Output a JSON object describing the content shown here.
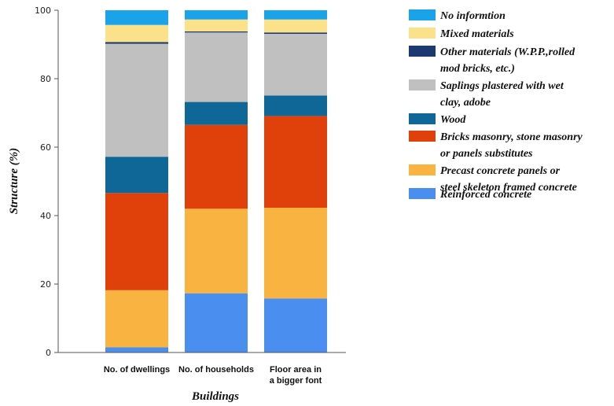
{
  "chart_data": {
    "type": "bar",
    "stacked": true,
    "xlabel": "Buildings",
    "ylabel": "Structure (%)",
    "ylim": [
      0,
      100
    ],
    "yticks": [
      0,
      20,
      40,
      60,
      80,
      100
    ],
    "grid": false,
    "legend_position": "right",
    "categories": [
      [
        "No. of dwellings"
      ],
      [
        "No. of households"
      ],
      [
        "Floor area in",
        "a bigger font"
      ]
    ],
    "series": [
      {
        "name": [
          "Reinforced concrete"
        ],
        "color": "#4a8ff0",
        "values": [
          1.5,
          17.3,
          15.8
        ]
      },
      {
        "name": [
          "Precast concrete panels or",
          "steel skeleton framed concrete"
        ],
        "color": "#f8b340",
        "values": [
          16.7,
          24.7,
          26.5
        ]
      },
      {
        "name": [
          "Bricks masonry, stone masonry",
          "or panels substitutes"
        ],
        "color": "#e0400a",
        "values": [
          28.4,
          24.5,
          26.8
        ]
      },
      {
        "name": [
          "Wood"
        ],
        "color": "#0f6797",
        "values": [
          10.6,
          6.7,
          6.0
        ]
      },
      {
        "name": [
          "Saplings plastered with wet",
          "clay, adobe"
        ],
        "color": "#c0c0c0",
        "values": [
          33.0,
          20.3,
          18.0
        ]
      },
      {
        "name": [
          "Other materials (W.P.P.,rolled",
          "mod bricks, etc.)"
        ],
        "color": "#1c3a70",
        "values": [
          0.5,
          0.3,
          0.4
        ]
      },
      {
        "name": [
          "Mixed materials"
        ],
        "color": "#fbe28a",
        "values": [
          5.0,
          3.5,
          3.8
        ]
      },
      {
        "name": [
          "No informtion"
        ],
        "color": "#1aa3e8",
        "values": [
          4.3,
          2.7,
          2.7
        ]
      }
    ]
  }
}
